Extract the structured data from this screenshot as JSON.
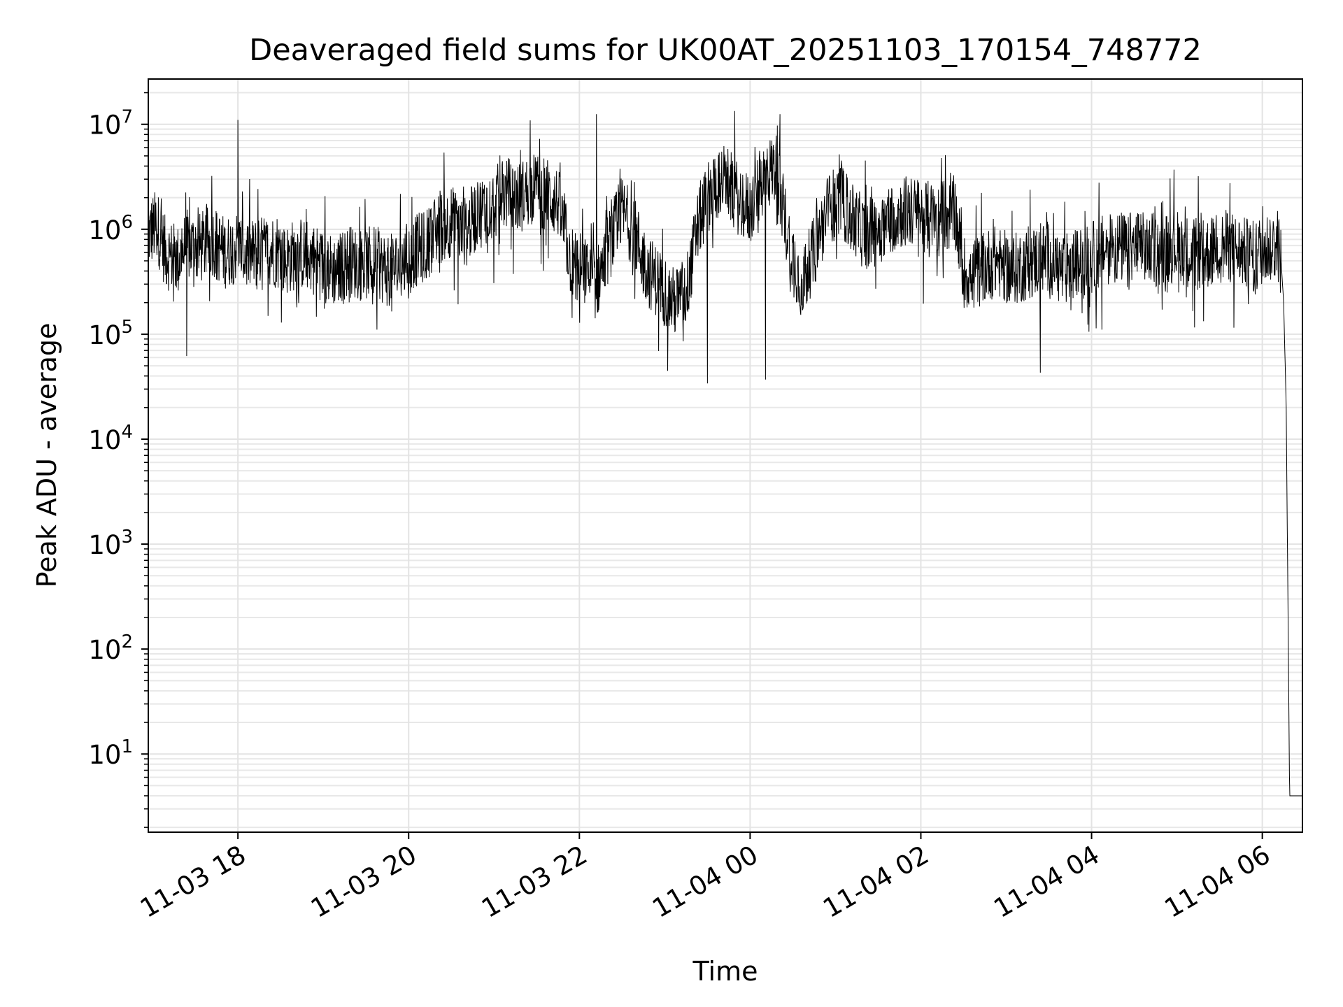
{
  "chart_data": {
    "type": "line",
    "title": "Deaveraged field sums for UK00AT_20251103_170154_748772",
    "xlabel": "Time",
    "ylabel": "Peak ADU - average",
    "yscale": "log",
    "ylim": [
      1.8,
      27000000
    ],
    "xlim_hours": [
      -7.05,
      6.47
    ],
    "grid": true,
    "legend": "none",
    "line_color": "#000000",
    "x_ticks": [
      {
        "label": "11-03 18",
        "hour": -6
      },
      {
        "label": "11-03 20",
        "hour": -4
      },
      {
        "label": "11-03 22",
        "hour": -2
      },
      {
        "label": "11-04 00",
        "hour": 0
      },
      {
        "label": "11-04 02",
        "hour": 2
      },
      {
        "label": "11-04 04",
        "hour": 4
      },
      {
        "label": "11-04 06",
        "hour": 6
      }
    ],
    "y_ticks": [
      {
        "base": "10",
        "exp": "1",
        "value": 10
      },
      {
        "base": "10",
        "exp": "2",
        "value": 100
      },
      {
        "base": "10",
        "exp": "3",
        "value": 1000
      },
      {
        "base": "10",
        "exp": "4",
        "value": 10000
      },
      {
        "base": "10",
        "exp": "5",
        "value": 100000
      },
      {
        "base": "10",
        "exp": "6",
        "value": 1000000
      },
      {
        "base": "10",
        "exp": "7",
        "value": 10000000
      }
    ],
    "series": [
      {
        "name": "peak_adu_minus_average",
        "x_hours": [
          -7.05,
          -6.95,
          -6.85,
          -6.7,
          -6.6,
          -6.45,
          -6.3,
          -6.15,
          -6.0,
          -5.9,
          -5.75,
          -5.6,
          -5.45,
          -5.3,
          -5.15,
          -5.0,
          -4.85,
          -4.7,
          -4.55,
          -4.4,
          -4.25,
          -4.1,
          -3.95,
          -3.8,
          -3.65,
          -3.5,
          -3.35,
          -3.2,
          -3.0,
          -2.85,
          -2.7,
          -2.55,
          -2.4,
          -2.25,
          -2.1,
          -1.95,
          -1.8,
          -1.65,
          -1.5,
          -1.35,
          -1.2,
          -1.05,
          -0.9,
          -0.75,
          -0.6,
          -0.45,
          -0.3,
          -0.15,
          0.0,
          0.15,
          0.3,
          0.45,
          0.6,
          0.75,
          0.9,
          1.05,
          1.2,
          1.35,
          1.5,
          1.65,
          1.8,
          1.95,
          2.1,
          2.25,
          2.4,
          2.5,
          2.6,
          2.75,
          2.9,
          3.05,
          3.2,
          3.35,
          3.5,
          3.65,
          3.8,
          3.95,
          4.1,
          4.25,
          4.4,
          4.55,
          4.7,
          4.85,
          5.0,
          5.15,
          5.3,
          5.45,
          5.6,
          5.75,
          5.9,
          6.0,
          6.1,
          6.18,
          6.22,
          6.25,
          6.28,
          6.3,
          6.32,
          6.35,
          6.4,
          6.47
        ],
        "y": [
          900000,
          1100000,
          600000,
          500000,
          700000,
          650000,
          800000,
          600000,
          700000,
          550000,
          600000,
          650000,
          500000,
          600000,
          550000,
          450000,
          400000,
          500000,
          450000,
          500000,
          400000,
          450000,
          600000,
          700000,
          1000000,
          1200000,
          900000,
          1400000,
          1800000,
          2200000,
          2000000,
          2500000,
          2200000,
          1800000,
          500000,
          400000,
          300000,
          700000,
          1500000,
          900000,
          400000,
          300000,
          200000,
          250000,
          1200000,
          2500000,
          3000000,
          2000000,
          1500000,
          3000000,
          4000000,
          800000,
          300000,
          600000,
          1500000,
          2000000,
          1200000,
          900000,
          1000000,
          1300000,
          1500000,
          1400000,
          1300000,
          1200000,
          1500000,
          400000,
          350000,
          450000,
          500000,
          400000,
          450000,
          500000,
          550000,
          400000,
          450000,
          500000,
          600000,
          700000,
          650000,
          700000,
          600000,
          650000,
          700000,
          600000,
          550000,
          650000,
          700000,
          600000,
          550000,
          650000,
          700000,
          700000,
          500000,
          200000,
          20000,
          300,
          4,
          4,
          4,
          4
        ]
      }
    ],
    "annotations": {
      "spikes": [
        {
          "hour": -6.0,
          "value": 11000000
        },
        {
          "hour": -1.8,
          "value": 12500000
        },
        {
          "hour": 0.35,
          "value": 12500000
        },
        {
          "hour": 5.25,
          "value": 3200000
        }
      ],
      "dips": [
        {
          "hour": -6.6,
          "value": 62000
        },
        {
          "hour": -0.5,
          "value": 34000
        },
        {
          "hour": 0.18,
          "value": 37000
        },
        {
          "hour": 3.4,
          "value": 43000
        }
      ]
    }
  }
}
